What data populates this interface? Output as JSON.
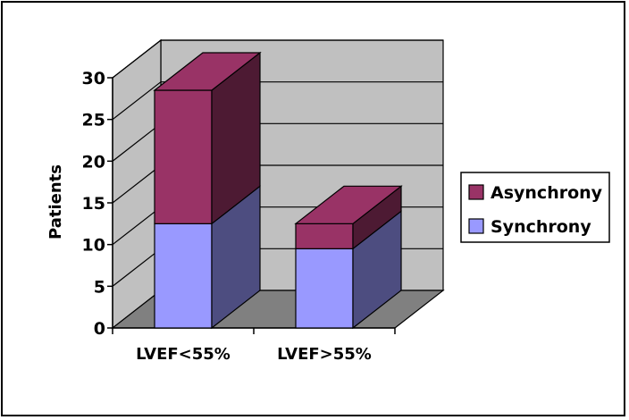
{
  "chart_data": {
    "type": "bar",
    "stacked": true,
    "three_d": true,
    "categories": [
      "LVEF<55%",
      "LVEF>55%"
    ],
    "series": [
      {
        "name": "Synchrony",
        "values": [
          12.5,
          9.5
        ],
        "color": "#9999ff"
      },
      {
        "name": "Asynchrony",
        "values": [
          16,
          3
        ],
        "color": "#993366"
      }
    ],
    "ylabel": "Patients",
    "xlabel": "",
    "ylim": [
      0,
      30
    ],
    "yticks": [
      0,
      5,
      10,
      15,
      20,
      25,
      30
    ],
    "grid": true,
    "legend_position": "right",
    "wall_color": "#c0c0c0",
    "floor_color": "#808080"
  }
}
